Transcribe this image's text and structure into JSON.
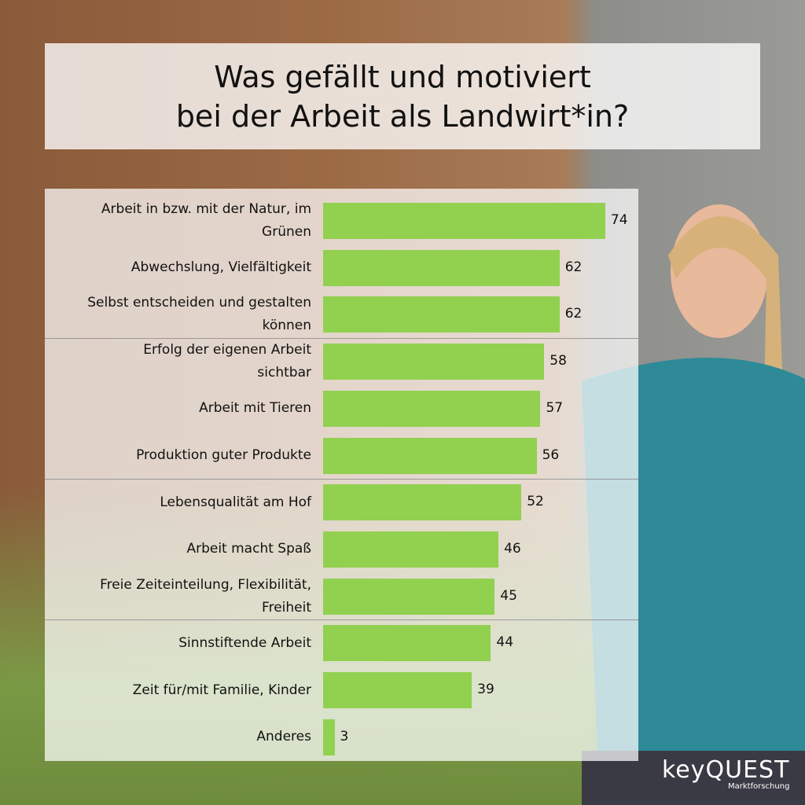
{
  "chart_data": {
    "type": "bar",
    "orientation": "horizontal",
    "title": "Was gefällt und motiviert\nbei der Arbeit als Landwirt*in?",
    "categories": [
      "Arbeit in bzw. mit der Natur, im\nGrünen",
      "Abwechslung, Vielfältigkeit",
      "Selbst entscheiden und gestalten\nkönnen",
      "Erfolg der eigenen Arbeit\nsichtbar",
      "Arbeit mit Tieren",
      "Produktion guter Produkte",
      "Lebensqualität am Hof",
      "Arbeit macht Spaß",
      "Freie Zeiteinteilung, Flexibilität,\nFreiheit",
      "Sinnstiftende Arbeit",
      "Zeit für/mit Familie, Kinder",
      "Anderes"
    ],
    "values": [
      74,
      62,
      62,
      58,
      57,
      56,
      52,
      46,
      45,
      44,
      39,
      3
    ],
    "color": "#92d050"
  },
  "logo": {
    "brand": "keyQUEST",
    "tagline": "Marktforschung"
  }
}
